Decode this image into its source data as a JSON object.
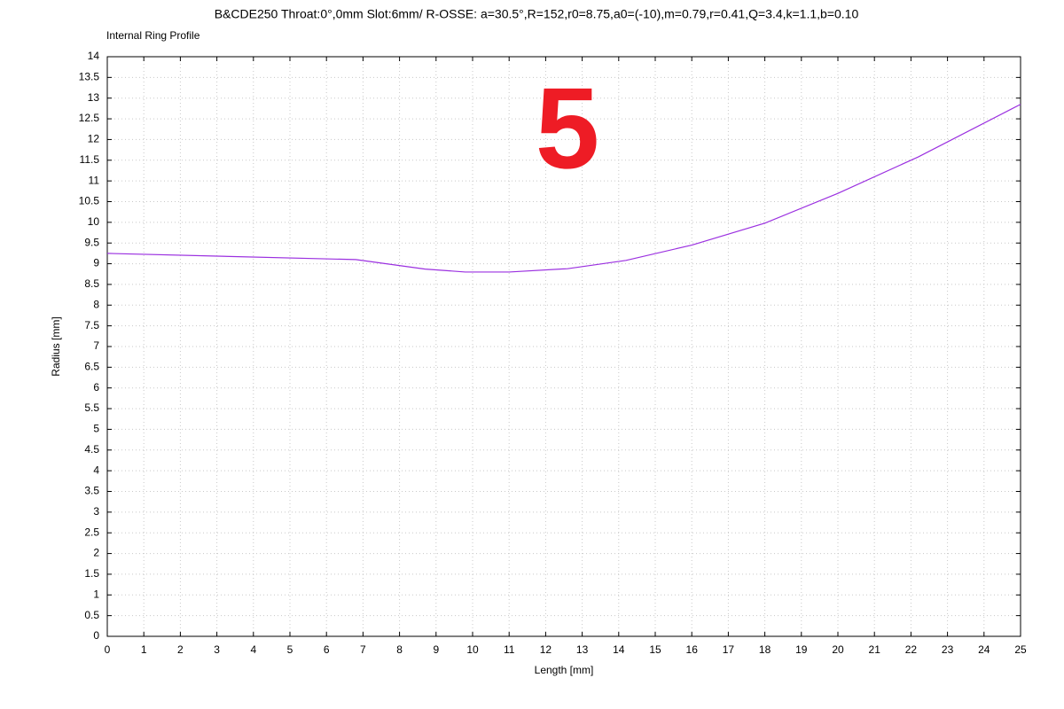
{
  "chart_data": {
    "type": "line",
    "title": "B&CDE250 Throat:0°,0mm Slot:6mm/ R-OSSE: a=30.5°,R=152,r0=8.75,a0=(-10),m=0.79,r=0.41,Q=3.4,k=1.1,b=0.10",
    "subtitle": "Internal Ring Profile",
    "annotation": "5",
    "annotation_color": "#ee1c25",
    "x_label": "Length [mm]",
    "y_label": "Radius [mm]",
    "x": [
      0,
      6.8,
      8.7,
      9.8,
      11,
      12.6,
      14.2,
      16,
      18,
      20,
      22.2,
      25
    ],
    "series": [
      {
        "color": "#9b30e0",
        "values": [
          9.25,
          9.1,
          8.87,
          8.8,
          8.8,
          8.88,
          9.08,
          9.45,
          9.98,
          10.7,
          11.58,
          12.85
        ]
      }
    ],
    "xlim": [
      0,
      25
    ],
    "xticks": [
      0,
      1,
      2,
      3,
      4,
      5,
      6,
      7,
      8,
      9,
      10,
      11,
      12,
      13,
      14,
      15,
      16,
      17,
      18,
      19,
      20,
      21,
      22,
      23,
      24,
      25
    ],
    "ylim": [
      0,
      14
    ],
    "yticks": [
      0,
      0.5,
      1,
      1.5,
      2,
      2.5,
      3,
      3.5,
      4,
      4.5,
      5,
      5.5,
      6,
      6.5,
      7,
      7.5,
      8,
      8.5,
      9,
      9.5,
      10,
      10.5,
      11,
      11.5,
      12,
      12.5,
      13,
      13.5,
      14
    ],
    "grid": true
  }
}
